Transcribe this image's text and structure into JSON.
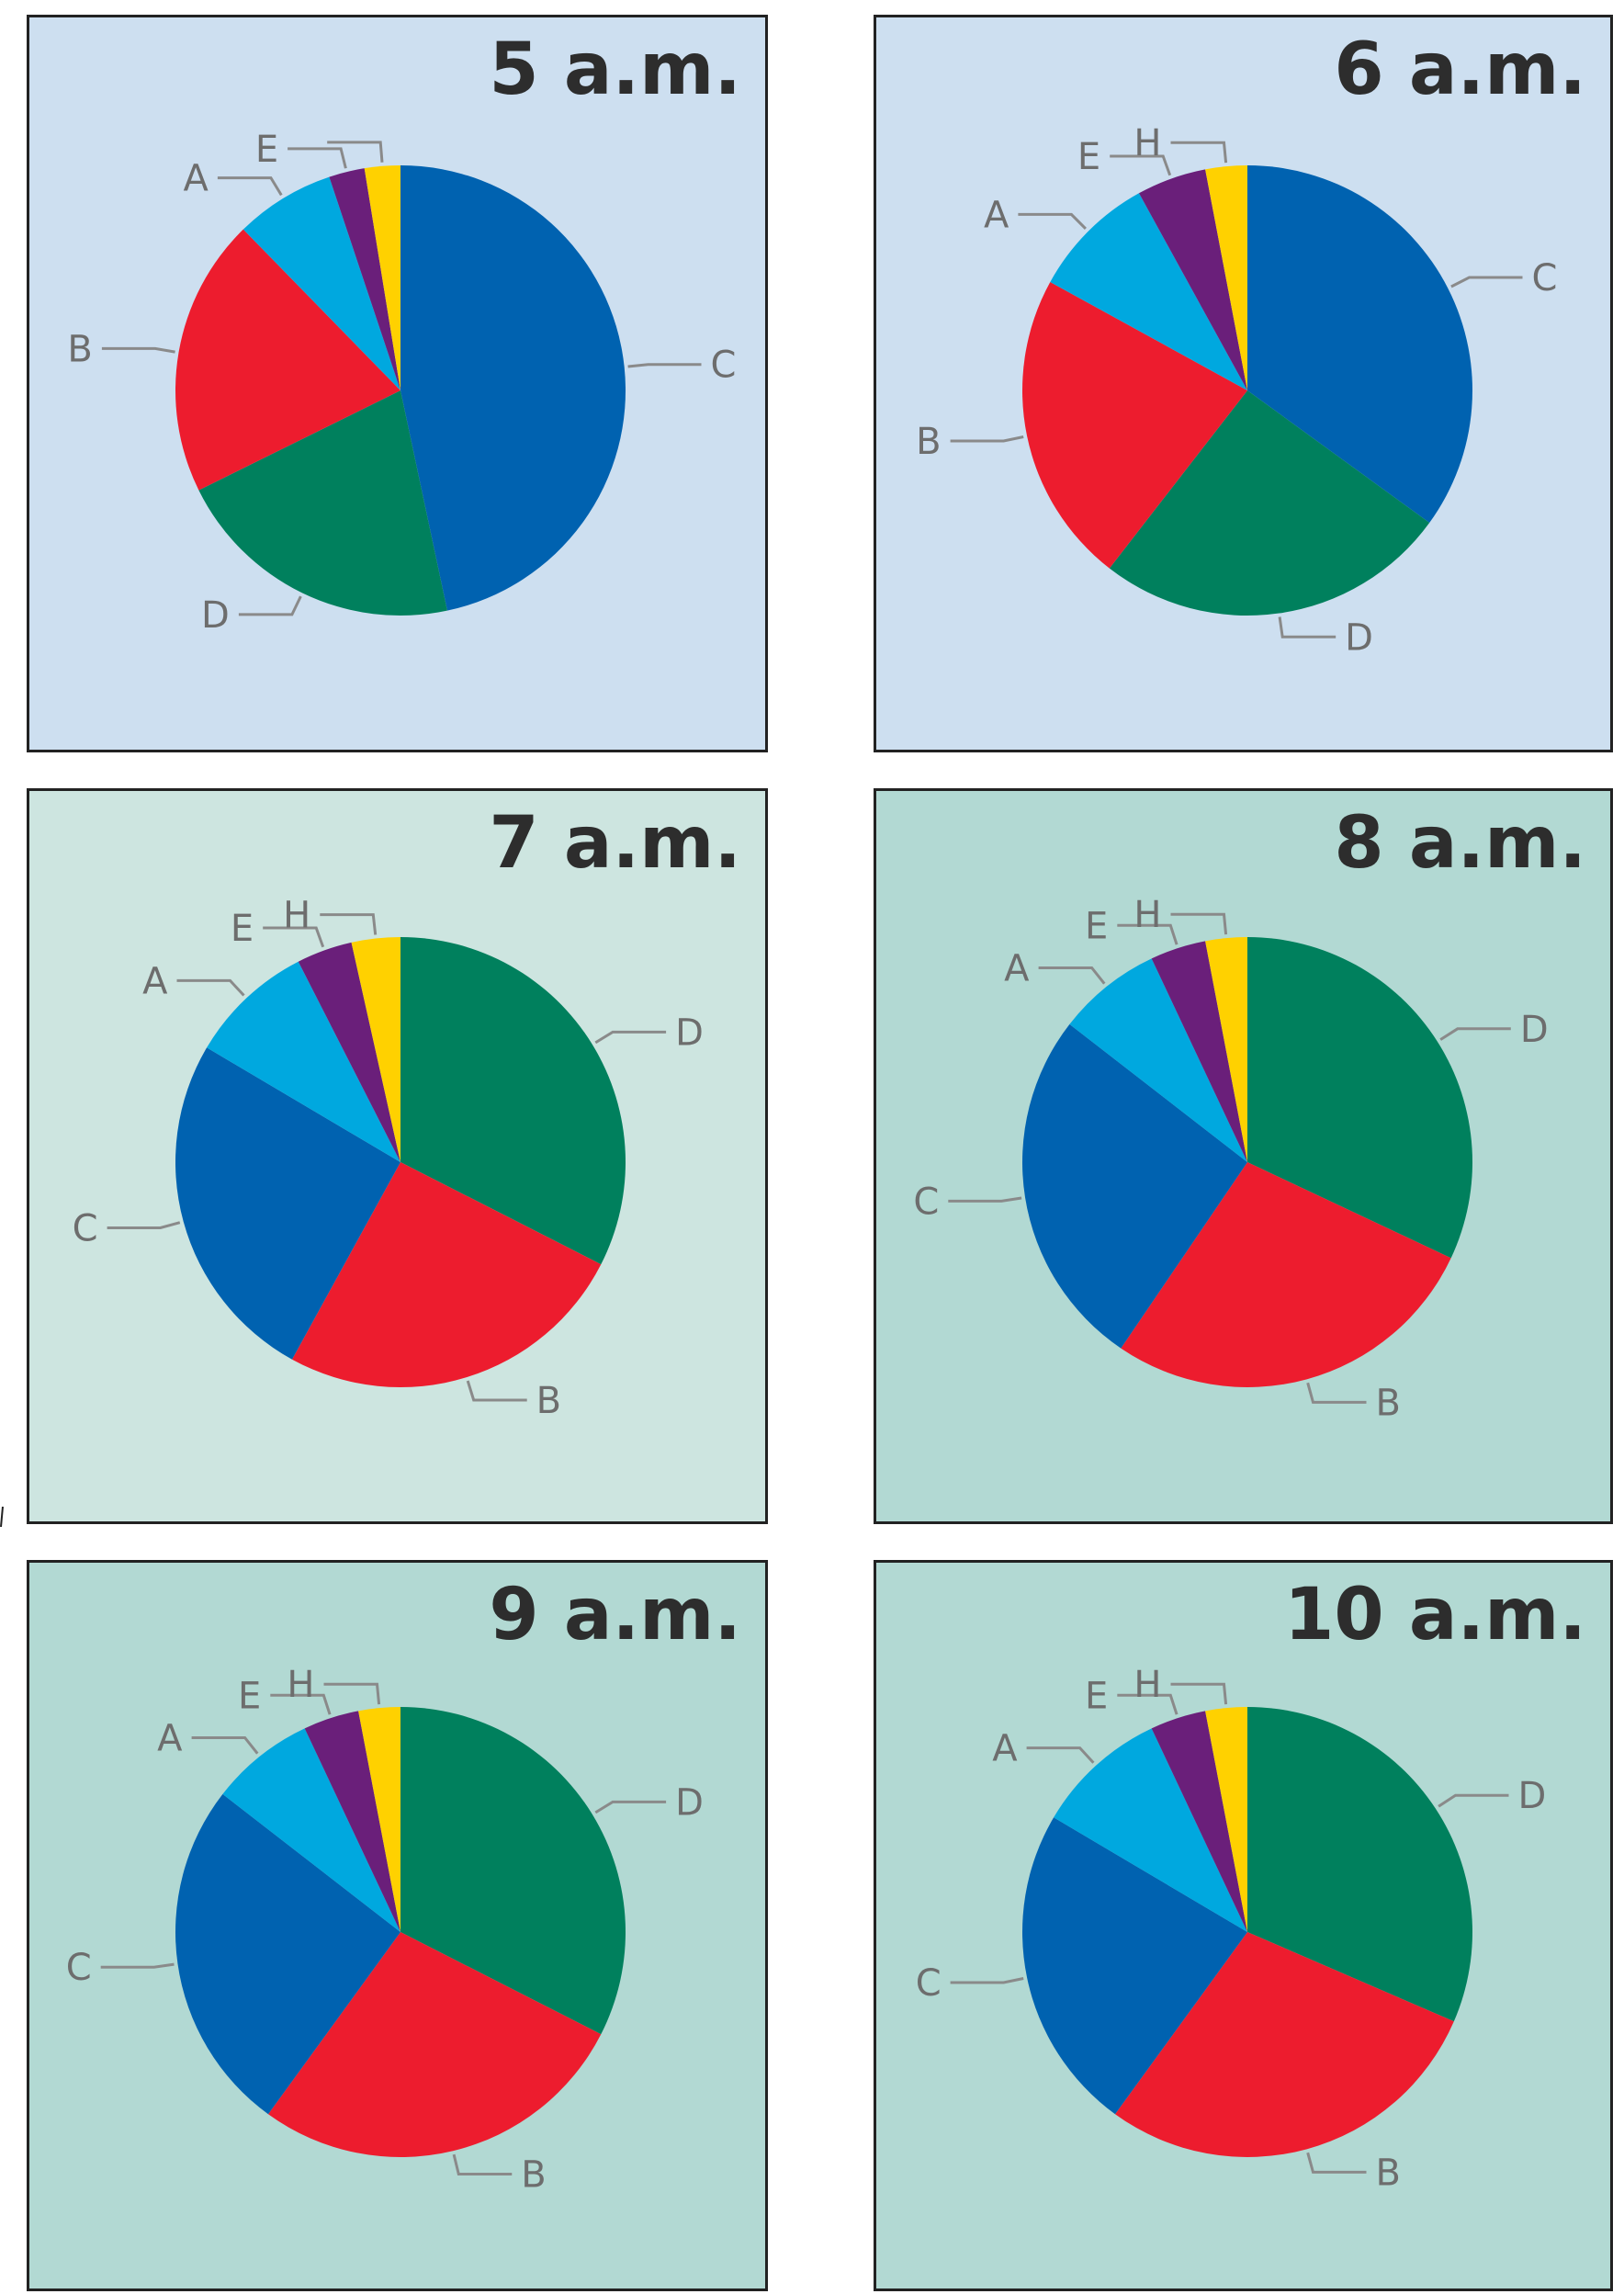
{
  "colors": {
    "A": "#00a8df",
    "B": "#ed1c2e",
    "C": "#0062b0",
    "D": "#00805d",
    "E": "#6a1f7a",
    "H": "#ffd100",
    "panel_blue": "#cddff0",
    "panel_green_light": "#cde5e0",
    "panel_green": "#b2d9d3",
    "leader": "#8a8a8a",
    "label": "#6d6d6d"
  },
  "chart_data": [
    {
      "type": "pie",
      "title": "5 a.m.",
      "slices": [
        {
          "label": "C",
          "value": 45.5
        },
        {
          "label": "D",
          "value": 20.5
        },
        {
          "label": "B",
          "value": 19.5
        },
        {
          "label": "A",
          "value": 7
        },
        {
          "label": "E",
          "value": 2.5
        },
        {
          "label": "",
          "value": 2.5
        }
      ]
    },
    {
      "type": "pie",
      "title": "6 a.m.",
      "slices": [
        {
          "label": "C",
          "value": 35
        },
        {
          "label": "D",
          "value": 25.5
        },
        {
          "label": "B",
          "value": 22.5
        },
        {
          "label": "A",
          "value": 9
        },
        {
          "label": "E",
          "value": 5
        },
        {
          "label": "H",
          "value": 3
        }
      ]
    },
    {
      "type": "pie",
      "title": "7 a.m.",
      "slices": [
        {
          "label": "D",
          "value": 32.5
        },
        {
          "label": "B",
          "value": 25.5
        },
        {
          "label": "C",
          "value": 25.5
        },
        {
          "label": "A",
          "value": 9
        },
        {
          "label": "E",
          "value": 4
        },
        {
          "label": "H",
          "value": 3.5
        }
      ]
    },
    {
      "type": "pie",
      "title": "8 a.m.",
      "slices": [
        {
          "label": "D",
          "value": 32
        },
        {
          "label": "B",
          "value": 27.5
        },
        {
          "label": "C",
          "value": 26
        },
        {
          "label": "A",
          "value": 7.5
        },
        {
          "label": "E",
          "value": 4
        },
        {
          "label": "H",
          "value": 3
        }
      ]
    },
    {
      "type": "pie",
      "title": "9 a.m.",
      "slices": [
        {
          "label": "D",
          "value": 32.5
        },
        {
          "label": "B",
          "value": 27.5
        },
        {
          "label": "C",
          "value": 25.5
        },
        {
          "label": "A",
          "value": 7.5
        },
        {
          "label": "E",
          "value": 4
        },
        {
          "label": "H",
          "value": 3
        }
      ]
    },
    {
      "type": "pie",
      "title": "10 a.m.",
      "slices": [
        {
          "label": "D",
          "value": 31.5
        },
        {
          "label": "B",
          "value": 28.5
        },
        {
          "label": "C",
          "value": 23.5
        },
        {
          "label": "A",
          "value": 9.5
        },
        {
          "label": "E",
          "value": 4
        },
        {
          "label": "H",
          "value": 3
        }
      ]
    }
  ]
}
